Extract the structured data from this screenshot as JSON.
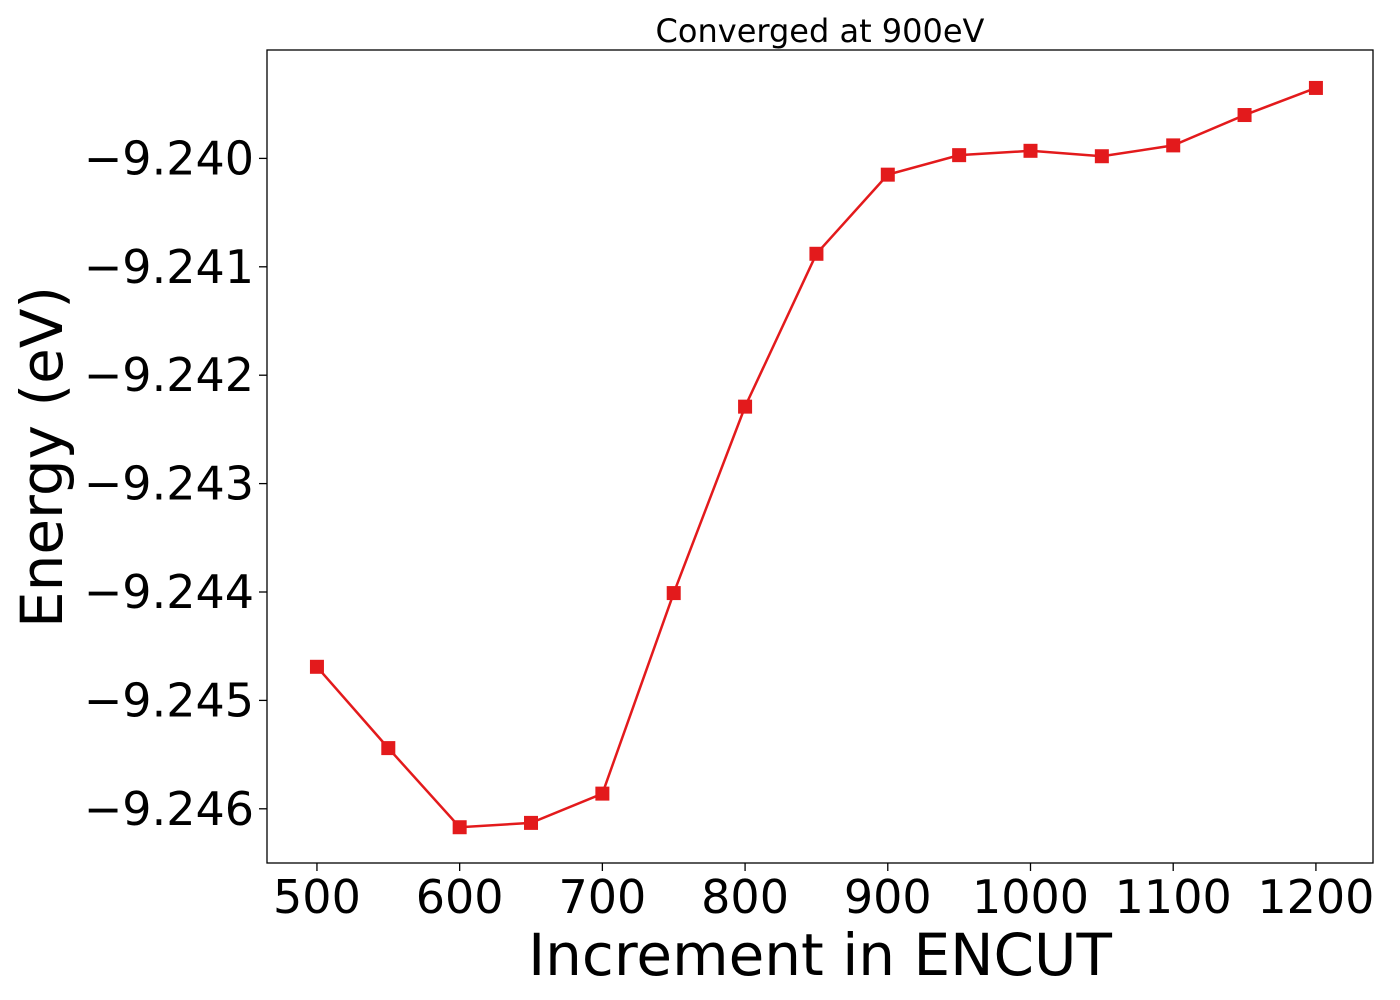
{
  "chart_data": {
    "type": "line",
    "title": "Converged at 900eV",
    "xlabel": "Increment in ENCUT",
    "ylabel": "Energy (eV)",
    "xlim": [
      465,
      1240
    ],
    "ylim": [
      -9.2465,
      -9.239
    ],
    "xticks": [
      500,
      600,
      700,
      800,
      900,
      1000,
      1100,
      1200
    ],
    "xtick_labels": [
      "500",
      "600",
      "700",
      "800",
      "900",
      "1000",
      "1100",
      "1200"
    ],
    "yticks": [
      -9.24,
      -9.241,
      -9.242,
      -9.243,
      -9.244,
      -9.245,
      -9.246
    ],
    "ytick_labels": [
      "−9.240",
      "−9.241",
      "−9.242",
      "−9.243",
      "−9.244",
      "−9.245",
      "−9.246"
    ],
    "grid": false,
    "legend": "none",
    "series": [
      {
        "color": "#e31a1c",
        "marker": "square",
        "x": [
          500,
          550,
          600,
          650,
          700,
          750,
          800,
          850,
          900,
          950,
          1000,
          1050,
          1100,
          1150,
          1200
        ],
        "y": [
          -9.24469,
          -9.24544,
          -9.24617,
          -9.24613,
          -9.24586,
          -9.24401,
          -9.24229,
          -9.24088,
          -9.24015,
          -9.23997,
          -9.23993,
          -9.23998,
          -9.23988,
          -9.2396,
          -9.23935
        ]
      }
    ]
  }
}
